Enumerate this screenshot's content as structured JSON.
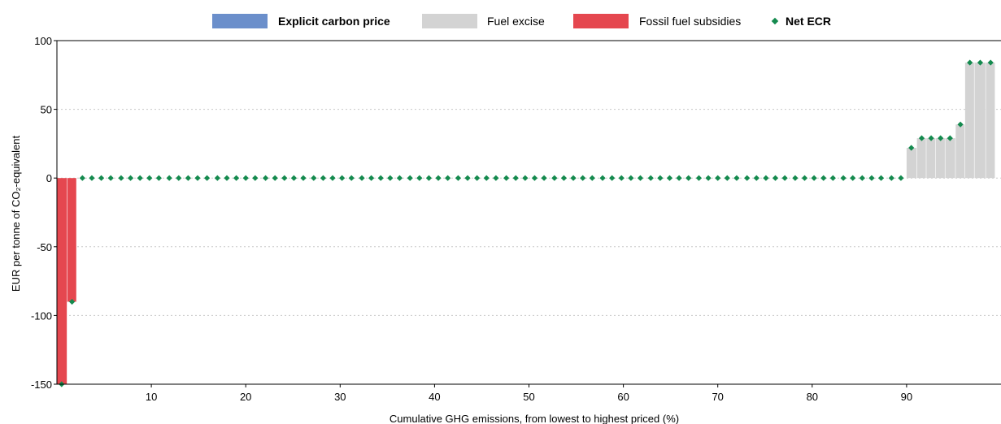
{
  "chart_data": {
    "type": "bar",
    "xlabel": "Cumulative GHG emissions, from lowest to highest priced (%)",
    "ylabel": "EUR per tonne of CO₂-equivalent",
    "ylim": [
      -150,
      100
    ],
    "xlim": [
      0,
      100
    ],
    "x_ticks": [
      10,
      20,
      30,
      40,
      50,
      60,
      70,
      80,
      90
    ],
    "y_ticks": [
      100,
      50,
      0,
      -50,
      -100,
      -150
    ],
    "grid": "horizontal dotted",
    "legend_position": "top",
    "legend": [
      {
        "label": "Explicit carbon price",
        "color": "#6b8fcb",
        "kind": "bar",
        "bold": true
      },
      {
        "label": "Fuel excise",
        "color": "#d3d3d3",
        "kind": "bar",
        "bold": false
      },
      {
        "label": "Fossil fuel subsidies",
        "color": "#e5474f",
        "kind": "bar",
        "bold": false
      },
      {
        "label": "Net ECR",
        "color": "#148a4e",
        "kind": "marker",
        "bold": true
      }
    ],
    "series": [
      {
        "name": "Fossil fuel subsidies",
        "color": "#e5474f",
        "segments": [
          {
            "x0": 0.0,
            "x1": 1.1,
            "value": -150
          },
          {
            "x0": 1.1,
            "x1": 2.1,
            "value": -90
          }
        ]
      },
      {
        "name": "Fuel excise",
        "color": "#d3d3d3",
        "segments": [
          {
            "x0": 90.0,
            "x1": 91.1,
            "value": 22
          },
          {
            "x0": 91.1,
            "x1": 92.1,
            "value": 29
          },
          {
            "x0": 92.1,
            "x1": 93.1,
            "value": 29
          },
          {
            "x0": 93.1,
            "x1": 94.1,
            "value": 29
          },
          {
            "x0": 94.1,
            "x1": 95.2,
            "value": 29
          },
          {
            "x0": 95.2,
            "x1": 96.2,
            "value": 39
          },
          {
            "x0": 96.2,
            "x1": 97.2,
            "value": 84
          },
          {
            "x0": 97.2,
            "x1": 98.4,
            "value": 84
          },
          {
            "x0": 98.4,
            "x1": 99.4,
            "value": 84
          }
        ]
      },
      {
        "name": "Net ECR",
        "color": "#148a4e",
        "points": [
          [
            0.5,
            -150
          ],
          [
            1.6,
            -90
          ],
          [
            2.7,
            0
          ],
          [
            3.7,
            0
          ],
          [
            4.7,
            0
          ],
          [
            5.7,
            0
          ],
          [
            6.8,
            0
          ],
          [
            7.8,
            0
          ],
          [
            8.8,
            0
          ],
          [
            9.8,
            0
          ],
          [
            10.8,
            0
          ],
          [
            11.9,
            0
          ],
          [
            12.9,
            0
          ],
          [
            13.9,
            0
          ],
          [
            14.9,
            0
          ],
          [
            15.9,
            0
          ],
          [
            17.0,
            0
          ],
          [
            18.0,
            0
          ],
          [
            19.0,
            0
          ],
          [
            20.0,
            0
          ],
          [
            21.0,
            0
          ],
          [
            22.1,
            0
          ],
          [
            23.1,
            0
          ],
          [
            24.1,
            0
          ],
          [
            25.1,
            0
          ],
          [
            26.1,
            0
          ],
          [
            27.2,
            0
          ],
          [
            28.2,
            0
          ],
          [
            29.2,
            0
          ],
          [
            30.2,
            0
          ],
          [
            31.2,
            0
          ],
          [
            32.3,
            0
          ],
          [
            33.3,
            0
          ],
          [
            34.3,
            0
          ],
          [
            35.3,
            0
          ],
          [
            36.3,
            0
          ],
          [
            37.4,
            0
          ],
          [
            38.4,
            0
          ],
          [
            39.4,
            0
          ],
          [
            40.4,
            0
          ],
          [
            41.4,
            0
          ],
          [
            42.5,
            0
          ],
          [
            43.5,
            0
          ],
          [
            44.5,
            0
          ],
          [
            45.5,
            0
          ],
          [
            46.5,
            0
          ],
          [
            47.6,
            0
          ],
          [
            48.6,
            0
          ],
          [
            49.6,
            0
          ],
          [
            50.6,
            0
          ],
          [
            51.6,
            0
          ],
          [
            52.7,
            0
          ],
          [
            53.7,
            0
          ],
          [
            54.7,
            0
          ],
          [
            55.7,
            0
          ],
          [
            56.7,
            0
          ],
          [
            57.8,
            0
          ],
          [
            58.8,
            0
          ],
          [
            59.8,
            0
          ],
          [
            60.8,
            0
          ],
          [
            61.8,
            0
          ],
          [
            62.9,
            0
          ],
          [
            63.9,
            0
          ],
          [
            64.9,
            0
          ],
          [
            65.9,
            0
          ],
          [
            66.9,
            0
          ],
          [
            68.0,
            0
          ],
          [
            69.0,
            0
          ],
          [
            70.0,
            0
          ],
          [
            71.0,
            0
          ],
          [
            72.0,
            0
          ],
          [
            73.1,
            0
          ],
          [
            74.1,
            0
          ],
          [
            75.1,
            0
          ],
          [
            76.1,
            0
          ],
          [
            77.1,
            0
          ],
          [
            78.2,
            0
          ],
          [
            79.2,
            0
          ],
          [
            80.2,
            0
          ],
          [
            81.2,
            0
          ],
          [
            82.2,
            0
          ],
          [
            83.3,
            0
          ],
          [
            84.3,
            0
          ],
          [
            85.3,
            0
          ],
          [
            86.3,
            0
          ],
          [
            87.3,
            0
          ],
          [
            88.4,
            0
          ],
          [
            89.4,
            0
          ],
          [
            90.5,
            22
          ],
          [
            91.6,
            29
          ],
          [
            92.6,
            29
          ],
          [
            93.6,
            29
          ],
          [
            94.6,
            29
          ],
          [
            95.7,
            39
          ],
          [
            96.7,
            84
          ],
          [
            97.8,
            84
          ],
          [
            98.9,
            84
          ]
        ]
      }
    ]
  }
}
